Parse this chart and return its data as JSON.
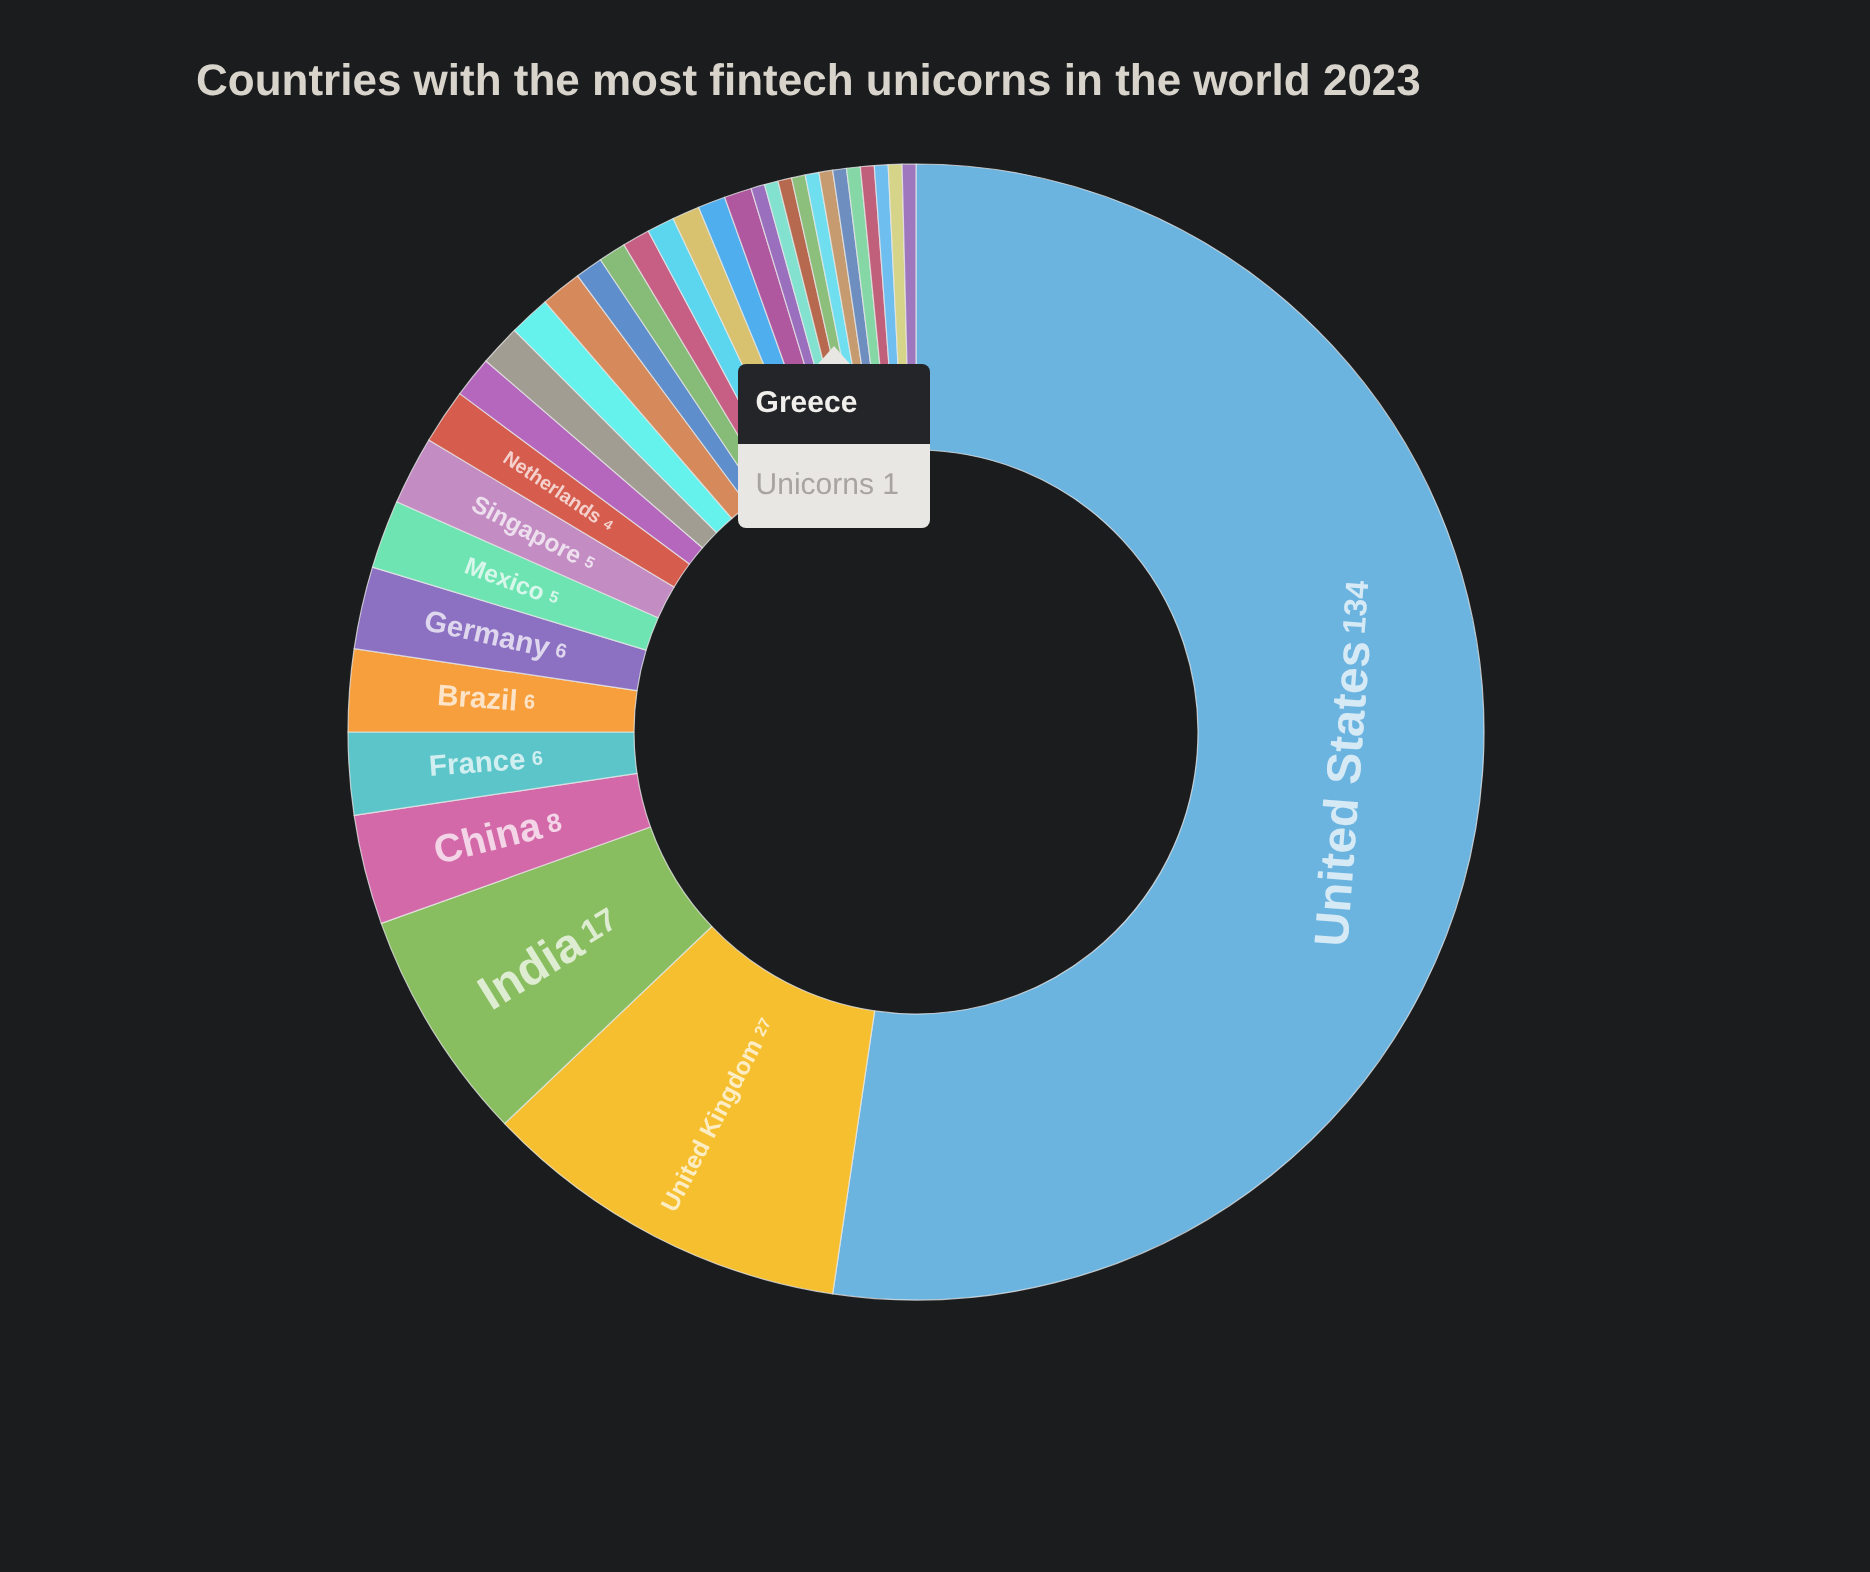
{
  "chart_data": {
    "type": "donut",
    "title": "Countries with the most fintech unicorns in the world 2023",
    "categories": [
      "United States",
      "United Kingdom",
      "India",
      "China",
      "France",
      "Brazil",
      "Germany",
      "Mexico",
      "Singapore",
      "Netherlands",
      null,
      null,
      null,
      null,
      null,
      null,
      null,
      null,
      null,
      null,
      null,
      null,
      null,
      null,
      "Greece",
      null,
      null,
      null,
      null,
      null,
      null,
      null,
      null
    ],
    "values": [
      134,
      27,
      17,
      8,
      6,
      6,
      6,
      5,
      5,
      4,
      3,
      3,
      3,
      3,
      2,
      2,
      2,
      2,
      2,
      2,
      2,
      1,
      1,
      1,
      1,
      1,
      1,
      1,
      1,
      1,
      1,
      1,
      1
    ],
    "value_labels": [
      "134",
      "27",
      "17",
      "8",
      "6",
      "6",
      "6",
      "5",
      "5",
      "4",
      null,
      null,
      null,
      null,
      null,
      null,
      null,
      null,
      null,
      null,
      null,
      null,
      null,
      null,
      null,
      null,
      null,
      null,
      null,
      null,
      null,
      null,
      null
    ],
    "colors": [
      "#6cb4e0",
      "#f6bf2f",
      "#88be5f",
      "#d469a9",
      "#5cc5c9",
      "#f79f3c",
      "#8c71c3",
      "#6fe4b3",
      "#c38cc3",
      "#d65c4d",
      "#b566bd",
      "#a19d93",
      "#66f2ec",
      "#d68a5c",
      "#5f8ecd",
      "#86bc78",
      "#c65f83",
      "#5cd5ef",
      "#d8c26f",
      "#4eaeee",
      "#b0589f",
      "#9a6fbe",
      "#83e1d0",
      "#b7694f",
      "#8cbf7c",
      "#6fdff0",
      "#c59b6f",
      "#6e8ec0",
      "#85d8a6",
      "#c1607b",
      "#6ebfef",
      "#d6d489",
      "#9e77bf"
    ],
    "annotations": [
      {
        "text": "Unicorns 1",
        "x": "Greece"
      }
    ]
  }
}
